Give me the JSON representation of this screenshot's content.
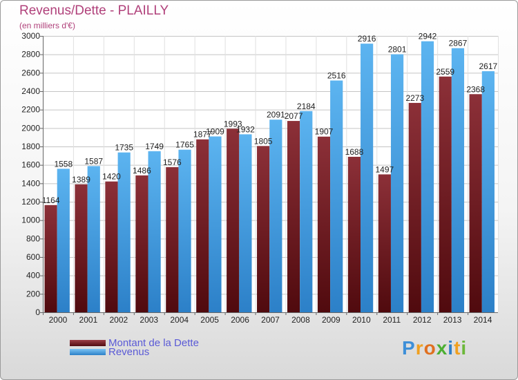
{
  "chart_data": {
    "type": "bar",
    "title": "Revenus/Dette - PLAILLY",
    "subtitle": "(en milliers d'€)",
    "categories": [
      "2000",
      "2001",
      "2002",
      "2003",
      "2004",
      "2005",
      "2006",
      "2007",
      "2008",
      "2009",
      "2010",
      "2011",
      "2012",
      "2013",
      "2014"
    ],
    "series": [
      {
        "name": "Montant de la Dette",
        "color": "#7b2229",
        "values": [
          1164,
          1389,
          1420,
          1486,
          1576,
          1877,
          1993,
          1805,
          2077,
          1907,
          1688,
          1497,
          2273,
          2559,
          2368
        ],
        "labels": [
          "1164",
          "1389",
          "1420",
          "1486",
          "1576",
          "1877",
          "1993",
          "1805",
          "2077",
          "1907",
          "1688",
          "1497",
          "2273",
          "2559",
          "2368"
        ]
      },
      {
        "name": "Revenus",
        "color": "#4ea6e4",
        "values": [
          1558,
          1587,
          1735,
          1749,
          1765,
          1909,
          1932,
          2091,
          2184,
          2516,
          2916,
          2801,
          2942,
          2867,
          2617
        ],
        "labels": [
          "1558",
          "1587",
          "1735",
          "1749",
          "1765",
          "1909",
          "1932",
          "2091",
          "2184",
          "2516",
          "2916",
          "2801",
          "2942",
          "2867",
          "2617"
        ]
      }
    ],
    "yticks": [
      "0",
      "200",
      "400",
      "600",
      "800",
      "1000",
      "1200",
      "1400",
      "1600",
      "1800",
      "2000",
      "2200",
      "2400",
      "2600",
      "2800",
      "3000"
    ],
    "ylim": [
      0,
      3000
    ],
    "grid": true,
    "legend_position": "bottom-left"
  },
  "legend": {
    "debt_label": "Montant de la Dette",
    "revenue_label": "Revenus"
  },
  "logo": {
    "letters": [
      "P",
      "r",
      "o",
      "x",
      "i",
      "t",
      "i"
    ]
  }
}
